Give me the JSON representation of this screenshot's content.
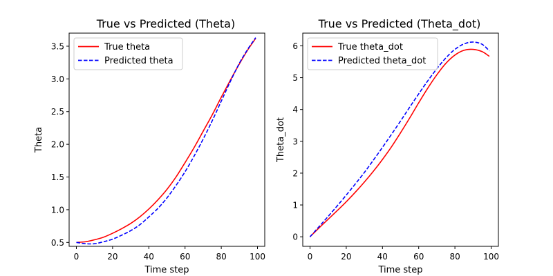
{
  "chart_data": [
    {
      "type": "line",
      "title": "True vs Predicted (Theta)",
      "xlabel": "Time step",
      "ylabel": "Theta",
      "xlim": [
        -4,
        104
      ],
      "ylim": [
        0.44,
        3.7
      ],
      "xticks": [
        0,
        20,
        40,
        60,
        80,
        100
      ],
      "yticks": [
        0.5,
        1.0,
        1.5,
        2.0,
        2.5,
        3.0,
        3.5
      ],
      "ytick_labels": [
        "0.5",
        "1.0",
        "1.5",
        "2.0",
        "2.5",
        "3.0",
        "3.5"
      ],
      "grid": false,
      "legend": "upper-left",
      "series": [
        {
          "name": "True theta",
          "color": "#ff0000",
          "style": "solid",
          "x": [
            0,
            5,
            10,
            15,
            20,
            25,
            30,
            35,
            40,
            45,
            50,
            55,
            60,
            65,
            70,
            75,
            80,
            85,
            90,
            95,
            99
          ],
          "values": [
            0.5,
            0.51,
            0.54,
            0.58,
            0.64,
            0.71,
            0.79,
            0.89,
            1.01,
            1.15,
            1.31,
            1.5,
            1.72,
            1.95,
            2.2,
            2.45,
            2.72,
            2.98,
            3.23,
            3.46,
            3.62
          ]
        },
        {
          "name": "Predicted theta",
          "color": "#0000ff",
          "style": "dashed",
          "x": [
            0,
            5,
            10,
            15,
            20,
            25,
            30,
            35,
            40,
            45,
            50,
            55,
            60,
            65,
            70,
            75,
            80,
            85,
            90,
            95,
            99
          ],
          "values": [
            0.5,
            0.48,
            0.48,
            0.51,
            0.55,
            0.61,
            0.68,
            0.77,
            0.89,
            1.02,
            1.18,
            1.37,
            1.58,
            1.82,
            2.08,
            2.36,
            2.66,
            2.96,
            3.24,
            3.47,
            3.63
          ]
        }
      ]
    },
    {
      "type": "line",
      "title": "True vs Predicted (Theta_dot)",
      "xlabel": "Time step",
      "ylabel": "Theta_dot",
      "xlim": [
        -4,
        104
      ],
      "ylim": [
        -0.3,
        6.4
      ],
      "xticks": [
        0,
        20,
        40,
        60,
        80,
        100
      ],
      "yticks": [
        0,
        1,
        2,
        3,
        4,
        5,
        6
      ],
      "ytick_labels": [
        "0",
        "1",
        "2",
        "3",
        "4",
        "5",
        "6"
      ],
      "grid": false,
      "legend": "upper-left",
      "series": [
        {
          "name": "True theta_dot",
          "color": "#ff0000",
          "style": "solid",
          "x": [
            0,
            5,
            10,
            15,
            20,
            25,
            30,
            35,
            40,
            45,
            50,
            55,
            60,
            65,
            70,
            75,
            80,
            85,
            90,
            95,
            99
          ],
          "values": [
            0.0,
            0.28,
            0.55,
            0.82,
            1.1,
            1.4,
            1.72,
            2.06,
            2.43,
            2.83,
            3.27,
            3.73,
            4.21,
            4.67,
            5.09,
            5.45,
            5.71,
            5.86,
            5.89,
            5.82,
            5.67
          ]
        },
        {
          "name": "Predicted theta_dot",
          "color": "#0000ff",
          "style": "dashed",
          "x": [
            0,
            5,
            10,
            15,
            20,
            25,
            30,
            35,
            40,
            45,
            50,
            55,
            60,
            65,
            70,
            75,
            80,
            85,
            90,
            95,
            99
          ],
          "values": [
            0.0,
            0.32,
            0.64,
            0.97,
            1.31,
            1.66,
            2.02,
            2.41,
            2.81,
            3.22,
            3.64,
            4.07,
            4.49,
            4.9,
            5.28,
            5.62,
            5.89,
            6.06,
            6.12,
            6.05,
            5.84
          ]
        }
      ]
    }
  ]
}
